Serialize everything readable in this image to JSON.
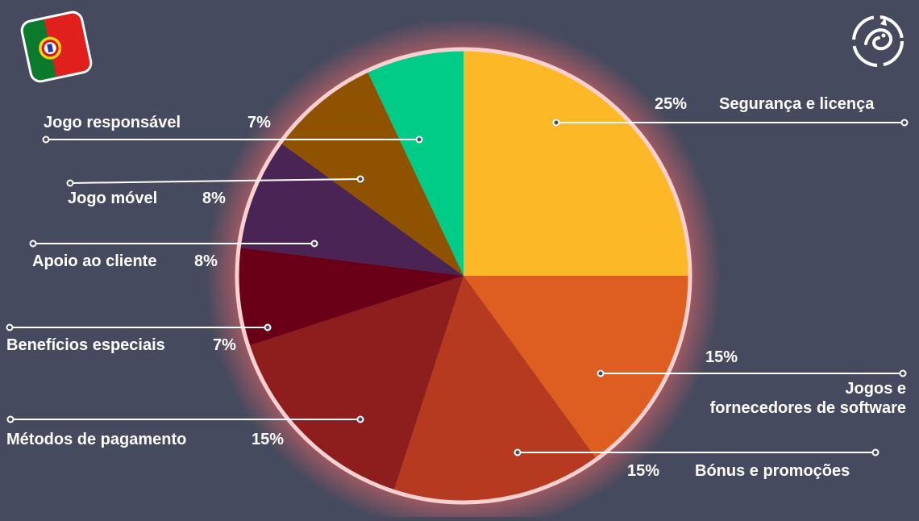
{
  "chart_data": {
    "type": "pie",
    "slices": [
      {
        "label": "Segurança e licença",
        "value": 25,
        "value_label": "25%",
        "color": "#fdb827"
      },
      {
        "label": "Jogos e fornecedores de software",
        "value": 15,
        "value_label": "15%",
        "color": "#dd5e20",
        "label_lines": [
          "Jogos e",
          "fornecedores de software"
        ]
      },
      {
        "label": "Bónus e promoções",
        "value": 15,
        "value_label": "15%",
        "color": "#b53a1f"
      },
      {
        "label": "Métodos de pagamento",
        "value": 15,
        "value_label": "15%",
        "color": "#8e1e1e"
      },
      {
        "label": "Benefícios especiais",
        "value": 7,
        "value_label": "7%",
        "color": "#6a0017"
      },
      {
        "label": "Apoio ao cliente",
        "value": 8,
        "value_label": "8%",
        "color": "#4a2455"
      },
      {
        "label": "Jogo móvel",
        "value": 8,
        "value_label": "8%",
        "color": "#8f5300"
      },
      {
        "label": "Jogo responsável",
        "value": 7,
        "value_label": "7%",
        "color": "#00cc88"
      }
    ]
  },
  "colors": {
    "background": "#454a5e",
    "pie_border": "#fbd0d0",
    "glow": "#ff6a6a",
    "text": "#ffffff"
  },
  "icons": {
    "flag": "portugal-flag-icon",
    "logo": "dragon-logo-icon"
  }
}
